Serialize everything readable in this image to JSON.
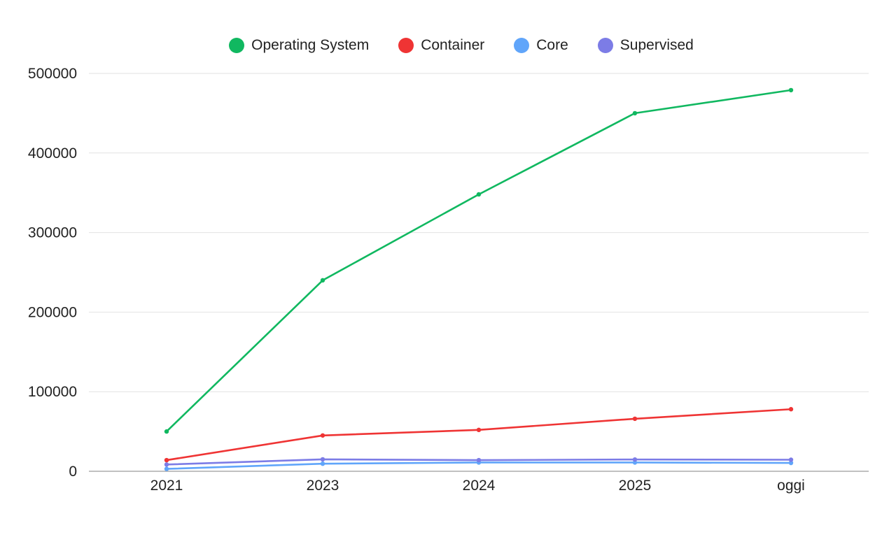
{
  "chart_data": {
    "type": "line",
    "title": "",
    "xlabel": "",
    "ylabel": "",
    "categories": [
      "2021",
      "2023",
      "2024",
      "2025",
      "oggi"
    ],
    "ylim": [
      0,
      500000
    ],
    "yticks": [
      0,
      100000,
      200000,
      300000,
      400000,
      500000
    ],
    "yticks_labels": [
      "0",
      "100000",
      "200000",
      "300000",
      "400000",
      "500000"
    ],
    "grid": true,
    "legend_position": "top-center",
    "series": [
      {
        "name": "Operating System",
        "color": "#10b860",
        "values": [
          50000,
          240000,
          348000,
          450000,
          479000
        ]
      },
      {
        "name": "Container",
        "color": "#ef3434",
        "values": [
          14000,
          45000,
          52000,
          66000,
          78000
        ]
      },
      {
        "name": "Core",
        "color": "#60a5fa",
        "values": [
          3000,
          9500,
          11000,
          11000,
          10500
        ]
      },
      {
        "name": "Supervised",
        "color": "#7c7ce6",
        "values": [
          8500,
          15000,
          14000,
          14800,
          14500
        ]
      }
    ]
  }
}
